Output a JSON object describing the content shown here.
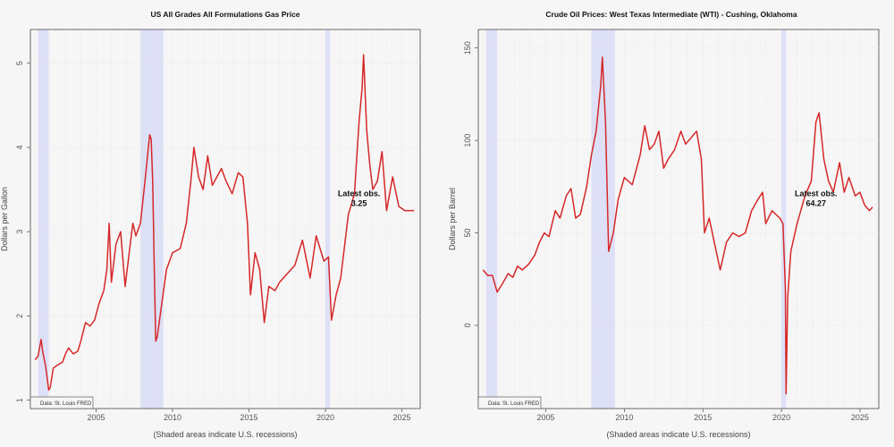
{
  "chart_data": [
    {
      "type": "line",
      "title": "US All Grades All Formulations Gas Price",
      "xlabel": "(Shaded areas indicate U.S. recessions)",
      "ylabel": "Dollars per Gallon",
      "xlim": [
        2000.7,
        2026.2
      ],
      "ylim": [
        0.9,
        5.4
      ],
      "xticks": [
        2005,
        2010,
        2015,
        2020,
        2025
      ],
      "yticks": [
        1,
        2,
        3,
        4,
        5
      ],
      "recessions": [
        [
          2001.2,
          2001.9
        ],
        [
          2007.9,
          2009.4
        ],
        [
          2020.0,
          2020.3
        ]
      ],
      "annotation": {
        "label": "Latest obs.",
        "value": "3.25",
        "x": 2022.2,
        "y": 3.38
      },
      "source": "Data: St. Louis FRED",
      "color": "#d62728",
      "series": [
        {
          "name": "Gas price",
          "x": [
            2001.0,
            2001.2,
            2001.4,
            2001.5,
            2001.7,
            2001.9,
            2002.0,
            2002.2,
            2002.5,
            2002.8,
            2003.0,
            2003.2,
            2003.5,
            2003.8,
            2004.0,
            2004.3,
            2004.6,
            2004.9,
            2005.2,
            2005.5,
            2005.7,
            2005.85,
            2006.0,
            2006.3,
            2006.6,
            2006.9,
            2007.2,
            2007.4,
            2007.6,
            2007.9,
            2008.2,
            2008.5,
            2008.6,
            2008.7,
            2008.8,
            2008.9,
            2009.0,
            2009.3,
            2009.6,
            2010.0,
            2010.5,
            2010.9,
            2011.2,
            2011.4,
            2011.7,
            2012.0,
            2012.3,
            2012.6,
            2012.9,
            2013.2,
            2013.5,
            2013.9,
            2014.3,
            2014.6,
            2014.9,
            2015.1,
            2015.4,
            2015.7,
            2016.0,
            2016.3,
            2016.7,
            2017.0,
            2017.5,
            2018.0,
            2018.5,
            2019.0,
            2019.4,
            2019.9,
            2020.2,
            2020.4,
            2020.7,
            2021.0,
            2021.5,
            2021.9,
            2022.2,
            2022.4,
            2022.5,
            2022.7,
            2022.9,
            2023.1,
            2023.4,
            2023.7,
            2024.0,
            2024.4,
            2024.8,
            2025.2,
            2025.6,
            2025.8
          ],
          "y": [
            1.48,
            1.52,
            1.72,
            1.58,
            1.4,
            1.12,
            1.15,
            1.38,
            1.42,
            1.45,
            1.55,
            1.62,
            1.55,
            1.58,
            1.7,
            1.92,
            1.88,
            1.95,
            2.15,
            2.3,
            2.55,
            3.1,
            2.4,
            2.85,
            3.0,
            2.35,
            2.8,
            3.1,
            2.95,
            3.1,
            3.6,
            4.15,
            4.1,
            3.6,
            2.6,
            1.7,
            1.75,
            2.15,
            2.55,
            2.75,
            2.8,
            3.1,
            3.6,
            4.0,
            3.65,
            3.5,
            3.9,
            3.55,
            3.65,
            3.75,
            3.6,
            3.45,
            3.7,
            3.65,
            3.1,
            2.25,
            2.75,
            2.55,
            1.92,
            2.35,
            2.3,
            2.4,
            2.5,
            2.6,
            2.9,
            2.45,
            2.95,
            2.65,
            2.7,
            1.95,
            2.25,
            2.45,
            3.2,
            3.45,
            4.3,
            4.7,
            5.1,
            4.2,
            3.8,
            3.5,
            3.6,
            3.95,
            3.25,
            3.65,
            3.3,
            3.25,
            3.25,
            3.25
          ]
        }
      ]
    },
    {
      "type": "line",
      "title": "Crude Oil Prices: West Texas Intermediate (WTI) - Cushing, Oklahoma",
      "xlabel": "(Shaded areas indicate U.S. recessions)",
      "ylabel": "Dollars per Barrel",
      "xlim": [
        2000.7,
        2026.2
      ],
      "ylim": [
        -45,
        160
      ],
      "xticks": [
        2005,
        2010,
        2015,
        2020,
        2025
      ],
      "yticks": [
        0,
        50,
        100,
        150
      ],
      "recessions": [
        [
          2001.2,
          2001.9
        ],
        [
          2007.9,
          2009.4
        ],
        [
          2020.0,
          2020.3
        ]
      ],
      "annotation": {
        "label": "Latest obs.",
        "value": "64.27",
        "x": 2022.2,
        "y": 68
      },
      "source": "Data: St. Louis FRED",
      "color": "#d62728",
      "series": [
        {
          "name": "WTI",
          "x": [
            2001.0,
            2001.3,
            2001.6,
            2001.9,
            2002.2,
            2002.6,
            2002.9,
            2003.2,
            2003.5,
            2003.9,
            2004.3,
            2004.6,
            2004.9,
            2005.2,
            2005.6,
            2005.9,
            2006.3,
            2006.6,
            2006.9,
            2007.2,
            2007.6,
            2007.9,
            2008.2,
            2008.5,
            2008.6,
            2008.8,
            2009.0,
            2009.3,
            2009.6,
            2010.0,
            2010.5,
            2011.0,
            2011.3,
            2011.6,
            2011.9,
            2012.2,
            2012.5,
            2012.8,
            2013.2,
            2013.6,
            2013.9,
            2014.3,
            2014.6,
            2014.9,
            2015.1,
            2015.4,
            2015.7,
            2016.1,
            2016.5,
            2016.9,
            2017.3,
            2017.7,
            2018.1,
            2018.5,
            2018.8,
            2019.0,
            2019.4,
            2019.9,
            2020.1,
            2020.25,
            2020.3,
            2020.4,
            2020.6,
            2021.0,
            2021.5,
            2021.9,
            2022.2,
            2022.4,
            2022.7,
            2023.0,
            2023.3,
            2023.7,
            2024.0,
            2024.3,
            2024.7,
            2025.0,
            2025.3,
            2025.6,
            2025.8
          ],
          "y": [
            30,
            27,
            27,
            18,
            22,
            28,
            26,
            32,
            30,
            33,
            38,
            45,
            50,
            48,
            62,
            58,
            70,
            74,
            58,
            60,
            75,
            92,
            105,
            130,
            145,
            110,
            40,
            50,
            68,
            80,
            76,
            92,
            108,
            95,
            98,
            105,
            85,
            90,
            95,
            105,
            98,
            102,
            105,
            90,
            50,
            58,
            46,
            30,
            45,
            50,
            48,
            50,
            62,
            68,
            72,
            55,
            62,
            58,
            55,
            20,
            -37,
            15,
            40,
            55,
            70,
            78,
            110,
            115,
            90,
            78,
            72,
            88,
            72,
            80,
            70,
            72,
            65,
            62,
            64
          ]
        }
      ]
    }
  ]
}
